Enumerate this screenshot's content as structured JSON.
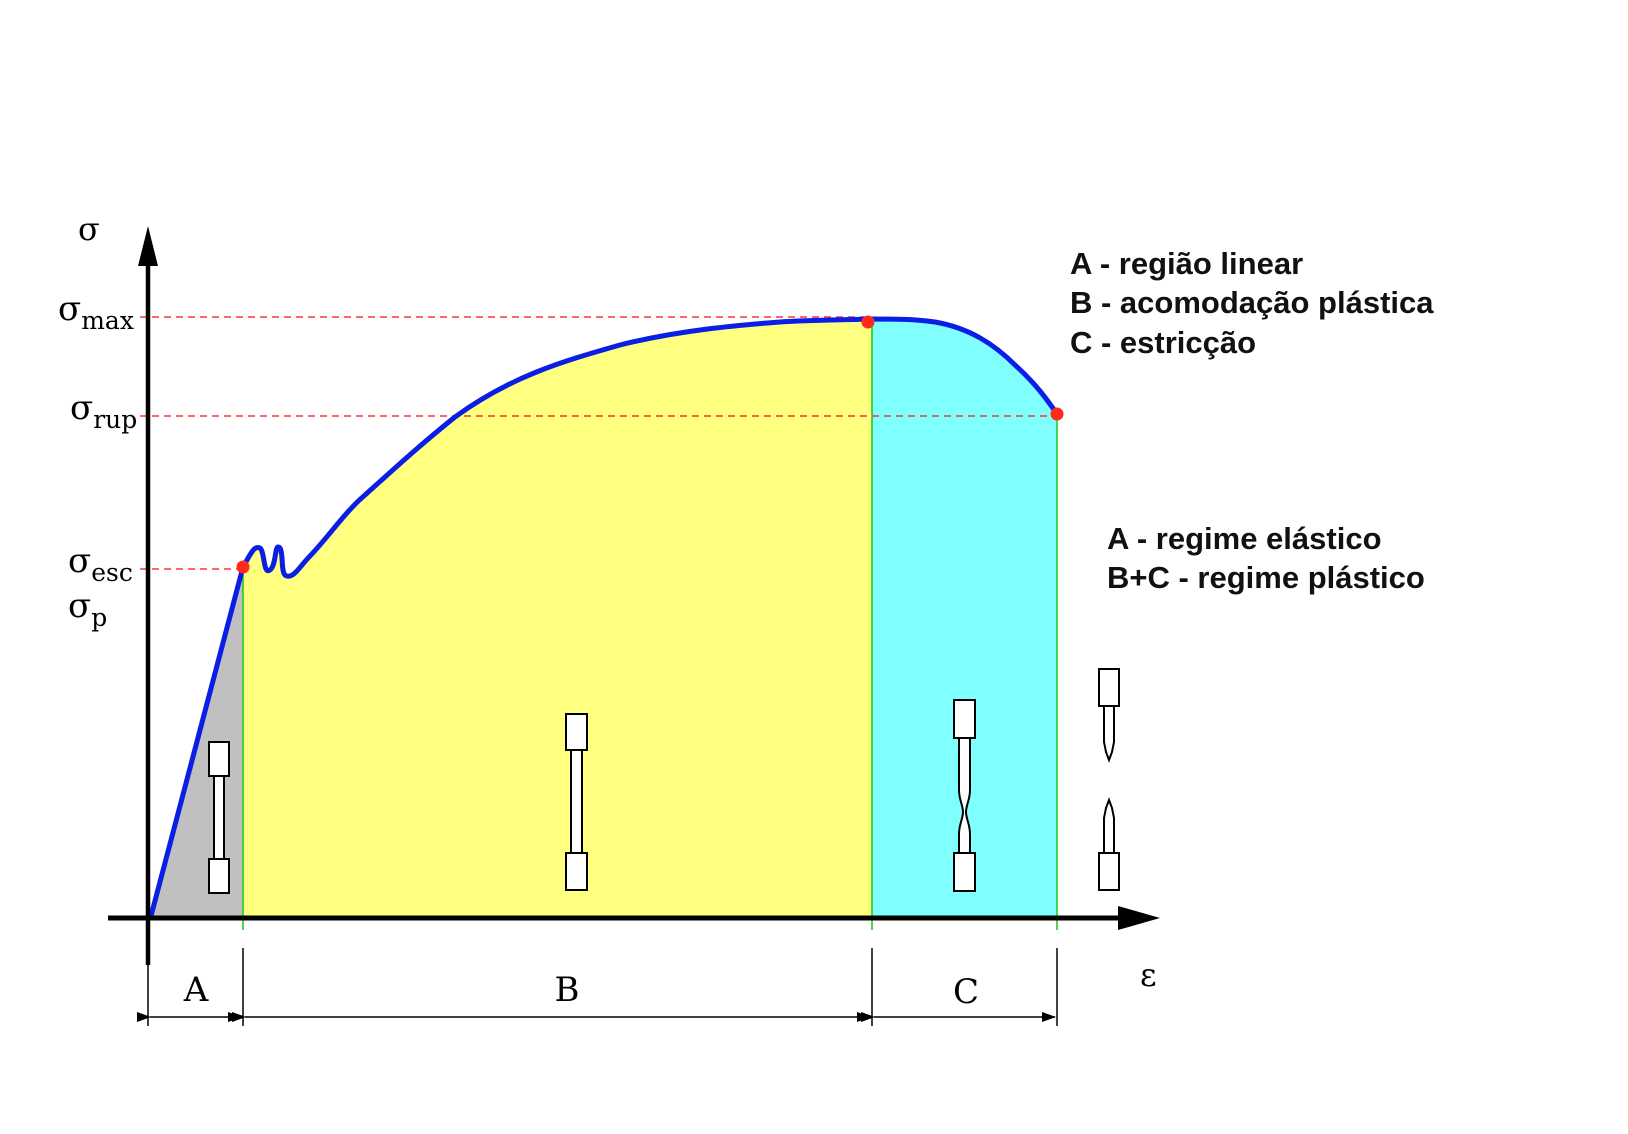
{
  "axes": {
    "y_label": "σ",
    "x_label": "ε"
  },
  "stress_levels": {
    "max": {
      "symbol": "σ",
      "subscript": "max"
    },
    "rup": {
      "symbol": "σ",
      "subscript": "rup"
    },
    "esc": {
      "symbol": "σ",
      "subscript": "esc"
    },
    "p": {
      "symbol": "σ",
      "subscript": "p"
    }
  },
  "regions": {
    "A": {
      "label": "A",
      "fill": "#c0c0c0"
    },
    "B": {
      "label": "B",
      "fill": "#ffff80"
    },
    "C": {
      "label": "C",
      "fill": "#80ffff"
    }
  },
  "legend_regions": [
    "A - região linear",
    "B - acomodação plástica",
    "C - estricção"
  ],
  "legend_regimes": [
    "A - regime elástico",
    "B+C - regime plástico"
  ],
  "colors": {
    "curve": "#0a1ee6",
    "points": "#ff2a1a",
    "reference_lines": "#ff3333",
    "boundary_lines": "#22cc22",
    "axis": "#000000"
  }
}
